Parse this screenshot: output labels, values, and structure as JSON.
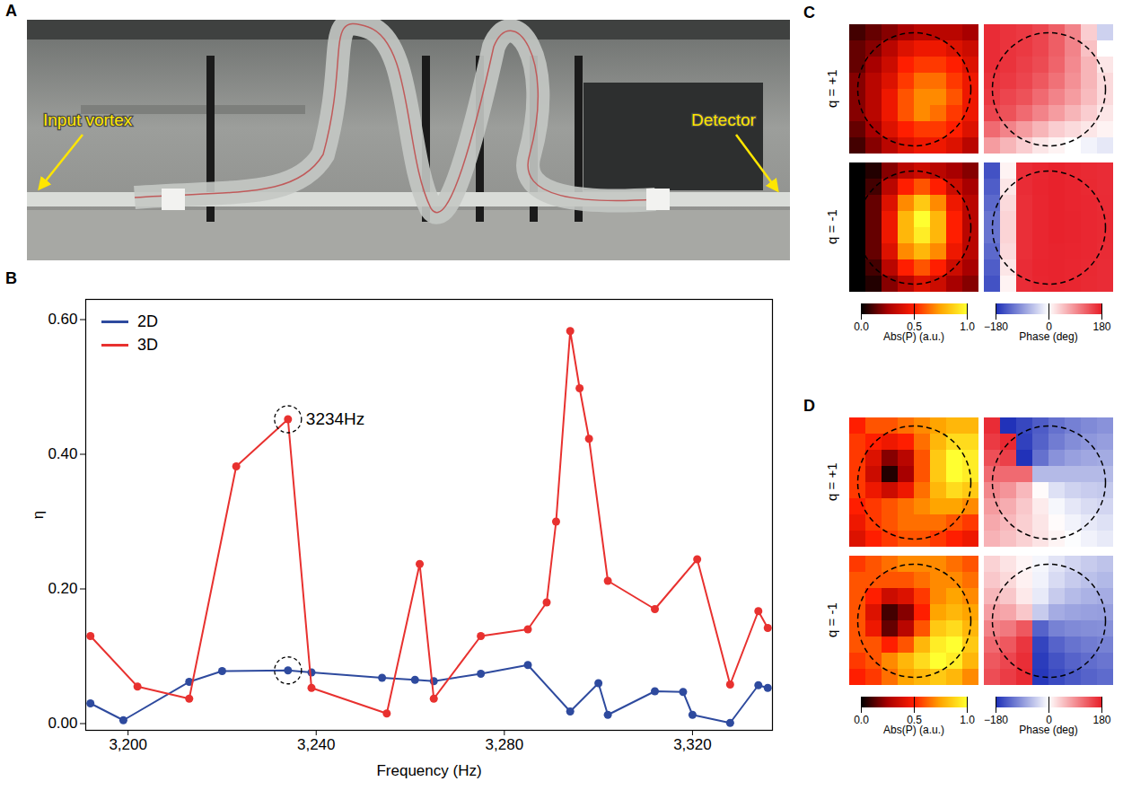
{
  "chart_data": [
    {
      "type": "image",
      "panel": "A",
      "annotations": [
        "Input vortex",
        "Detector"
      ]
    },
    {
      "type": "line",
      "panel": "B",
      "xlabel": "Frequency (Hz)",
      "ylabel": "η",
      "xlim": [
        3191,
        3337
      ],
      "xticks": [
        3200,
        3240,
        3280,
        3320
      ],
      "ylim": [
        -0.01,
        0.63
      ],
      "yticks": [
        0,
        0.2,
        0.4,
        0.6
      ],
      "legend": "upper left",
      "annotations": [
        {
          "text": "3234Hz",
          "x": 3234,
          "y": 0.452
        }
      ],
      "series": [
        {
          "name": "2D",
          "color": "#2e4a9e",
          "marker": "circle",
          "x": [
            3192,
            3199,
            3213,
            3220,
            3234,
            3239,
            3254,
            3261,
            3265,
            3275,
            3285,
            3294,
            3300,
            3302,
            3312,
            3318,
            3320,
            3328,
            3334,
            3336
          ],
          "values": [
            0.03,
            0.005,
            0.062,
            0.078,
            0.079,
            0.076,
            0.068,
            0.065,
            0.063,
            0.074,
            0.087,
            0.018,
            0.06,
            0.013,
            0.048,
            0.047,
            0.013,
            0.001,
            0.057,
            0.053
          ]
        },
        {
          "name": "3D",
          "color": "#e8312f",
          "marker": "circle",
          "x": [
            3192,
            3202,
            3213,
            3223,
            3234,
            3239,
            3255,
            3262,
            3265,
            3275,
            3285,
            3289,
            3291,
            3294,
            3296,
            3298,
            3302,
            3312,
            3321,
            3328,
            3334,
            3336
          ],
          "values": [
            0.13,
            0.055,
            0.037,
            0.382,
            0.452,
            0.053,
            0.015,
            0.237,
            0.037,
            0.13,
            0.14,
            0.18,
            0.3,
            0.583,
            0.498,
            0.423,
            0.212,
            0.17,
            0.244,
            0.058,
            0.167,
            0.142
          ]
        }
      ]
    },
    {
      "type": "heatmap",
      "panel": "C",
      "colorbars": [
        {
          "label": "Abs(P) (a.u.)",
          "color": "hot",
          "range": [
            0,
            1
          ],
          "ticks": [
            0,
            0.5,
            1
          ]
        },
        {
          "label": "Phase (deg)",
          "color": "blue-white-red",
          "range": [
            -180,
            180
          ],
          "ticks": [
            -180,
            0,
            180
          ]
        }
      ],
      "rows": [
        {
          "label": "q = +1",
          "cells": [
            [
              [
                0.1,
                0.15,
                0.2,
                0.25,
                0.3,
                0.3,
                0.3,
                0.25
              ],
              [
                0.15,
                0.2,
                0.3,
                0.4,
                0.45,
                0.45,
                0.4,
                0.35
              ],
              [
                0.15,
                0.25,
                0.35,
                0.5,
                0.55,
                0.55,
                0.5,
                0.4
              ],
              [
                0.2,
                0.3,
                0.4,
                0.55,
                0.65,
                0.65,
                0.55,
                0.45
              ],
              [
                0.2,
                0.3,
                0.45,
                0.6,
                0.7,
                0.7,
                0.6,
                0.45
              ],
              [
                0.2,
                0.3,
                0.45,
                0.6,
                0.7,
                0.65,
                0.55,
                0.45
              ],
              [
                0.15,
                0.25,
                0.4,
                0.5,
                0.55,
                0.55,
                0.5,
                0.4
              ],
              [
                0.1,
                0.2,
                0.3,
                0.4,
                0.45,
                0.45,
                0.4,
                0.3
              ]
            ],
            [
              [
                170,
                165,
                160,
                150,
                130,
                100,
                40,
                -40
              ],
              [
                170,
                165,
                160,
                150,
                130,
                100,
                50,
                0
              ],
              [
                170,
                165,
                155,
                145,
                125,
                95,
                60,
                20
              ],
              [
                165,
                160,
                150,
                135,
                115,
                90,
                60,
                30
              ],
              [
                160,
                150,
                140,
                120,
                100,
                80,
                55,
                30
              ],
              [
                150,
                140,
                120,
                100,
                80,
                60,
                40,
                20
              ],
              [
                120,
                100,
                80,
                60,
                40,
                30,
                20,
                10
              ],
              [
                80,
                60,
                40,
                20,
                10,
                0,
                -10,
                -20
              ]
            ]
          ]
        },
        {
          "label": "q = -1",
          "cells": [
            [
              [
                0,
                0.05,
                0.2,
                0.3,
                0.35,
                0.3,
                0.25,
                0.2
              ],
              [
                0,
                0.1,
                0.3,
                0.5,
                0.6,
                0.5,
                0.35,
                0.25
              ],
              [
                0,
                0.15,
                0.4,
                0.7,
                0.85,
                0.7,
                0.45,
                0.3
              ],
              [
                0,
                0.15,
                0.45,
                0.8,
                1,
                0.8,
                0.5,
                0.3
              ],
              [
                0,
                0.15,
                0.45,
                0.8,
                0.95,
                0.8,
                0.5,
                0.3
              ],
              [
                0,
                0.15,
                0.4,
                0.7,
                0.8,
                0.7,
                0.45,
                0.3
              ],
              [
                0,
                0.1,
                0.3,
                0.5,
                0.6,
                0.5,
                0.35,
                0.25
              ],
              [
                0,
                0.05,
                0.2,
                0.3,
                0.4,
                0.35,
                0.25,
                0.2
              ]
            ],
            [
              [
                -150,
                10,
                170,
                175,
                178,
                175,
                172,
                170
              ],
              [
                -140,
                20,
                170,
                176,
                178,
                176,
                173,
                170
              ],
              [
                -130,
                30,
                168,
                175,
                178,
                176,
                174,
                171
              ],
              [
                -120,
                35,
                168,
                175,
                178,
                177,
                174,
                172
              ],
              [
                -120,
                35,
                168,
                175,
                178,
                177,
                174,
                172
              ],
              [
                -130,
                30,
                168,
                175,
                177,
                176,
                174,
                171
              ],
              [
                -140,
                20,
                170,
                176,
                177,
                175,
                173,
                170
              ],
              [
                -150,
                10,
                170,
                175,
                177,
                175,
                172,
                170
              ]
            ]
          ]
        }
      ]
    },
    {
      "type": "heatmap",
      "panel": "D",
      "colorbars": [
        {
          "label": "Abs(P) (a.u.)",
          "color": "hot",
          "range": [
            0,
            1
          ],
          "ticks": [
            0,
            0.5,
            1
          ]
        },
        {
          "label": "Phase (deg)",
          "color": "blue-white-red",
          "range": [
            -180,
            180
          ],
          "ticks": [
            -180,
            0,
            180
          ]
        }
      ],
      "rows": [
        {
          "label": "q = +1",
          "cells": [
            [
              [
                0.5,
                0.6,
                0.6,
                0.65,
                0.7,
                0.75,
                0.8,
                0.8
              ],
              [
                0.55,
                0.5,
                0.45,
                0.5,
                0.65,
                0.8,
                0.9,
                0.9
              ],
              [
                0.55,
                0.4,
                0.2,
                0.3,
                0.6,
                0.85,
                1,
                0.95
              ],
              [
                0.55,
                0.35,
                0.05,
                0.25,
                0.6,
                0.85,
                1,
                0.95
              ],
              [
                0.55,
                0.45,
                0.35,
                0.45,
                0.65,
                0.8,
                0.9,
                0.85
              ],
              [
                0.5,
                0.55,
                0.6,
                0.65,
                0.7,
                0.75,
                0.75,
                0.7
              ],
              [
                0.45,
                0.55,
                0.6,
                0.65,
                0.65,
                0.65,
                0.6,
                0.55
              ],
              [
                0.4,
                0.5,
                0.55,
                0.6,
                0.6,
                0.55,
                0.5,
                0.45
              ]
            ],
            [
              [
                170,
                -177,
                -159,
                -141,
                -123,
                -110,
                -101,
                -94
              ],
              [
                159,
                173,
                -164,
                -136,
                -113,
                -99,
                -90,
                -84
              ],
              [
                142,
                154,
                -177,
                -123,
                -94,
                -82,
                -76,
                -73
              ],
              [
                120,
                120,
                120,
                -60,
                -60,
                -60,
                -60,
                -60
              ],
              [
                98,
                86,
                57,
                3,
                -26,
                -38,
                -44,
                -47
              ],
              [
                81,
                67,
                44,
                16,
                -7,
                -21,
                -30,
                -36
              ],
              [
                70,
                57,
                39,
                21,
                3,
                -10,
                -19,
                -26
              ],
              [
                62,
                51,
                37,
                23,
                9,
                -2,
                -11,
                -18
              ]
            ]
          ]
        },
        {
          "label": "q = -1",
          "cells": [
            [
              [
                0.55,
                0.6,
                0.65,
                0.7,
                0.7,
                0.7,
                0.65,
                0.6
              ],
              [
                0.6,
                0.6,
                0.6,
                0.6,
                0.65,
                0.7,
                0.7,
                0.65
              ],
              [
                0.6,
                0.5,
                0.35,
                0.4,
                0.55,
                0.7,
                0.75,
                0.7
              ],
              [
                0.6,
                0.4,
                0.1,
                0.2,
                0.5,
                0.75,
                0.8,
                0.75
              ],
              [
                0.6,
                0.45,
                0.15,
                0.3,
                0.6,
                0.85,
                0.9,
                0.8
              ],
              [
                0.6,
                0.6,
                0.5,
                0.6,
                0.8,
                0.95,
                1,
                0.85
              ],
              [
                0.55,
                0.6,
                0.7,
                0.8,
                0.9,
                1,
                0.95,
                0.8
              ],
              [
                0.5,
                0.55,
                0.65,
                0.75,
                0.8,
                0.85,
                0.8,
                0.7
              ]
            ],
            [
              [
                36,
                23,
                8,
                -8,
                -23,
                -36,
                -45,
                -52
              ],
              [
                45,
                31,
                11,
                -11,
                -31,
                -45,
                -54,
                -61
              ],
              [
                59,
                45,
                18,
                -18,
                -45,
                -59,
                -67,
                -72
              ],
              [
                79,
                72,
                45,
                -45,
                -72,
                -79,
                -82,
                -84
              ],
              [
                101,
                108,
                135,
                -135,
                -108,
                -101,
                -98,
                -96
              ],
              [
                121,
                135,
                162,
                -162,
                -135,
                -121,
                -113,
                -108
              ],
              [
                135,
                149,
                169,
                -169,
                -149,
                -135,
                -126,
                -119
              ],
              [
                144,
                157,
                172,
                -172,
                -157,
                -144,
                -135,
                -128
              ]
            ]
          ]
        }
      ]
    }
  ]
}
